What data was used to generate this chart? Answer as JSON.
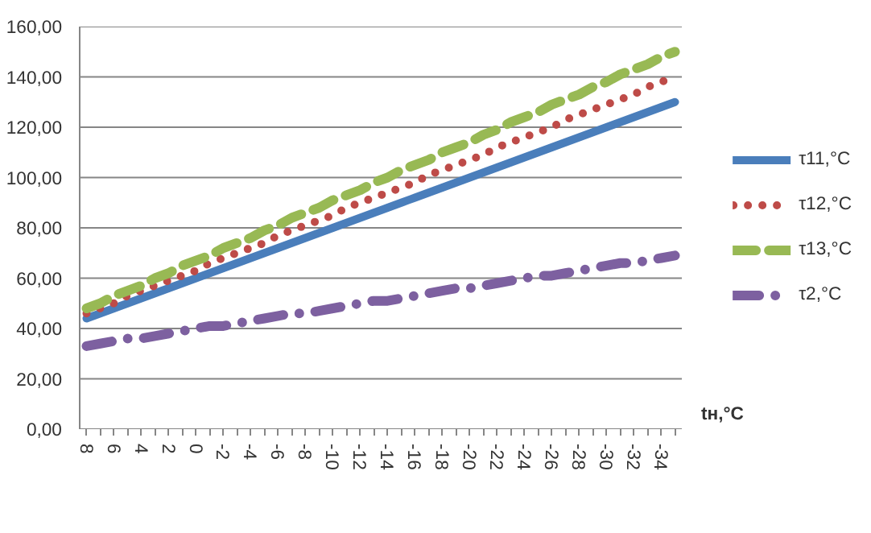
{
  "chart_data": {
    "type": "line",
    "xlabel": "tн,°C",
    "categories": [
      "8",
      null,
      "6",
      null,
      "4",
      null,
      "2",
      null,
      "0",
      null,
      "-2",
      null,
      "-4",
      null,
      "-6",
      null,
      "-8",
      null,
      "-10",
      null,
      "-12",
      null,
      "-14",
      null,
      "-16",
      null,
      "-18",
      null,
      "-20",
      null,
      "-22",
      null,
      "-24",
      null,
      "-26",
      null,
      "-28",
      null,
      "-30",
      null,
      "-32",
      null,
      "-34",
      null
    ],
    "series": [
      {
        "name": "τ11,°C",
        "color": "#4a7ebb",
        "line_style": "solid",
        "values": [
          44,
          46,
          48,
          50,
          52,
          54,
          56,
          58,
          60,
          62,
          64,
          66,
          68,
          70,
          72,
          74,
          76,
          78,
          80,
          82,
          84,
          86,
          88,
          90,
          92,
          94,
          96,
          98,
          100,
          102,
          104,
          106,
          108,
          110,
          112,
          114,
          116,
          118,
          120,
          122,
          124,
          126,
          128,
          130
        ]
      },
      {
        "name": "τ12,°C",
        "color": "#be4b48",
        "line_style": "dotted",
        "values": [
          46,
          48,
          50,
          53,
          55,
          57,
          59,
          61,
          63,
          66,
          68,
          70,
          72,
          74,
          77,
          79,
          81,
          83,
          85,
          88,
          90,
          92,
          94,
          96,
          98,
          101,
          103,
          105,
          107,
          109,
          112,
          114,
          116,
          118,
          120,
          123,
          125,
          127,
          129,
          131,
          133,
          136,
          138,
          140
        ]
      },
      {
        "name": "τ13,°C",
        "color": "#98b954",
        "line_style": "dashed",
        "values": [
          48,
          50,
          53,
          55,
          57,
          60,
          62,
          65,
          67,
          69,
          72,
          74,
          76,
          79,
          81,
          84,
          86,
          88,
          91,
          93,
          95,
          98,
          100,
          103,
          105,
          107,
          110,
          112,
          114,
          117,
          119,
          122,
          124,
          126,
          129,
          131,
          133,
          136,
          138,
          141,
          143,
          145,
          148,
          150
        ]
      },
      {
        "name": "τ2,°C",
        "color": "#7d60a0",
        "line_style": "dashdot",
        "values": [
          33,
          34,
          35,
          36,
          36,
          37,
          38,
          39,
          40,
          41,
          41,
          42,
          43,
          44,
          45,
          46,
          46,
          47,
          48,
          49,
          50,
          51,
          51,
          52,
          53,
          54,
          55,
          56,
          56,
          57,
          58,
          59,
          60,
          61,
          61,
          62,
          63,
          64,
          65,
          66,
          66,
          67,
          68,
          69
        ]
      }
    ],
    "ylim": [
      0,
      160
    ],
    "yticks": [
      {
        "value": 0,
        "label": "0,00"
      },
      {
        "value": 20,
        "label": "20,00"
      },
      {
        "value": 40,
        "label": "40,00"
      },
      {
        "value": 60,
        "label": "60,00"
      },
      {
        "value": 80,
        "label": "80,00"
      },
      {
        "value": 100,
        "label": "100,00"
      },
      {
        "value": 120,
        "label": "120,00"
      },
      {
        "value": 140,
        "label": "140,00"
      },
      {
        "value": 160,
        "label": "160,00"
      }
    ],
    "grid": "y",
    "legend": "right"
  }
}
